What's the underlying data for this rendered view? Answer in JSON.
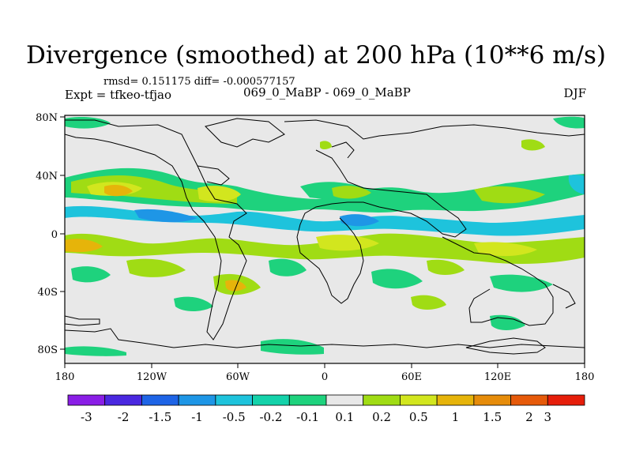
{
  "title": "Divergence (smoothed) at 200 hPa (10**6 m/s)",
  "stats": "rmsd= 0.151175 diff= -0.000577157",
  "experiment": "Expt = tfkeo-tfjao",
  "case": "069_0_MaBP - 069_0_MaBP",
  "season": "DJF",
  "x_ticks": [
    "180",
    "120W",
    "60W",
    "0",
    "60E",
    "120E",
    "180"
  ],
  "y_ticks": [
    "80N",
    "40N",
    "0",
    "40S",
    "80S"
  ],
  "colorbar": {
    "labels": [
      "-3",
      "-2",
      "-1.5",
      "-1",
      "-0.5",
      "-0.2",
      "-0.1",
      "0.1",
      "0.2",
      "0.5",
      "1",
      "1.5",
      "2",
      "3"
    ],
    "colors": [
      "#8a1ee6",
      "#4a28e0",
      "#1e64e6",
      "#1e96e6",
      "#1ec3dc",
      "#14d2aa",
      "#1ed27d",
      "#e8e8e8",
      "#a0dc14",
      "#d2e61e",
      "#e6b40a",
      "#e68c0a",
      "#e65a0a",
      "#e61e0a"
    ]
  }
}
